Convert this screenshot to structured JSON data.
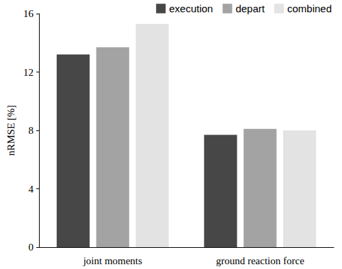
{
  "chart_data": {
    "type": "bar",
    "y_label": "nRMSE [%]",
    "categories": [
      "joint moments",
      "ground reaction force"
    ],
    "series": [
      {
        "name": "execution",
        "color": "#474747",
        "values": [
          13.2,
          7.7
        ]
      },
      {
        "name": "depart",
        "color": "#a3a3a3",
        "values": [
          13.7,
          8.1
        ]
      },
      {
        "name": "combined",
        "color": "#e3e3e3",
        "values": [
          15.3,
          8.0
        ]
      }
    ],
    "ylim": [
      0,
      16
    ],
    "yticks": [
      0,
      4,
      8,
      12,
      16
    ],
    "grid": false,
    "legend": "top-right"
  }
}
